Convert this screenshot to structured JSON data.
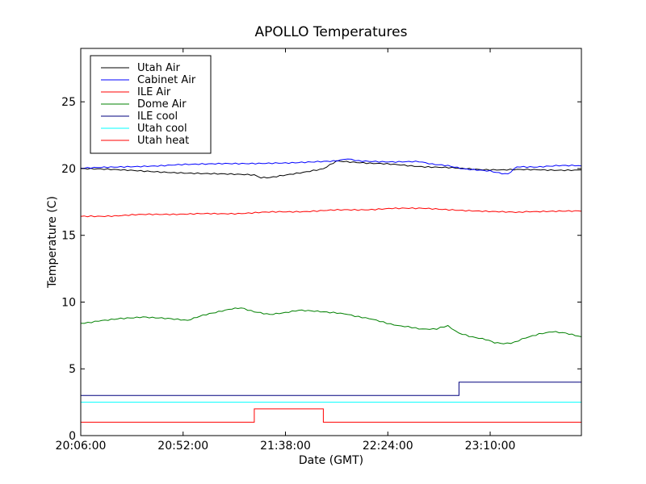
{
  "chart_data": {
    "type": "line",
    "title": "APOLLO Temperatures",
    "xlabel": "Date (GMT)",
    "ylabel": "Temperature (C)",
    "xlim_minutes": [
      0,
      225
    ],
    "ylim": [
      0,
      29
    ],
    "x_ticks": [
      {
        "value": 0,
        "label": "20:06:00"
      },
      {
        "value": 46,
        "label": "20:52:00"
      },
      {
        "value": 92,
        "label": "21:38:00"
      },
      {
        "value": 138,
        "label": "22:24:00"
      },
      {
        "value": 184,
        "label": "23:10:00"
      }
    ],
    "y_ticks": [
      {
        "value": 0,
        "label": "0"
      },
      {
        "value": 5,
        "label": "5"
      },
      {
        "value": 10,
        "label": "10"
      },
      {
        "value": 15,
        "label": "15"
      },
      {
        "value": 20,
        "label": "20"
      },
      {
        "value": 25,
        "label": "25"
      }
    ],
    "legend_position": "top-left",
    "series": [
      {
        "name": "Utah Air",
        "color": "#000000",
        "step": false,
        "points": [
          [
            0,
            20.0
          ],
          [
            30,
            19.8
          ],
          [
            60,
            19.6
          ],
          [
            78,
            19.5
          ],
          [
            81,
            19.3
          ],
          [
            85,
            19.3
          ],
          [
            100,
            19.7
          ],
          [
            109,
            20.0
          ],
          [
            115,
            20.6
          ],
          [
            130,
            20.4
          ],
          [
            150,
            20.2
          ],
          [
            170,
            20.0
          ],
          [
            190,
            19.9
          ],
          [
            225,
            19.9
          ]
        ]
      },
      {
        "name": "Cabinet Air",
        "color": "#0000ff",
        "step": false,
        "points": [
          [
            0,
            20.0
          ],
          [
            15,
            20.1
          ],
          [
            30,
            20.2
          ],
          [
            50,
            20.3
          ],
          [
            65,
            20.4
          ],
          [
            80,
            20.4
          ],
          [
            95,
            20.4
          ],
          [
            105,
            20.5
          ],
          [
            115,
            20.6
          ],
          [
            120,
            20.7
          ],
          [
            125,
            20.6
          ],
          [
            140,
            20.5
          ],
          [
            152,
            20.5
          ],
          [
            158,
            20.3
          ],
          [
            165,
            20.2
          ],
          [
            172,
            20.0
          ],
          [
            178,
            19.9
          ],
          [
            184,
            19.8
          ],
          [
            188,
            19.7
          ],
          [
            192,
            19.6
          ],
          [
            196,
            20.1
          ],
          [
            205,
            20.1
          ],
          [
            215,
            20.2
          ],
          [
            225,
            20.2
          ]
        ]
      },
      {
        "name": "ILE Air",
        "color": "#ff0000",
        "step": false,
        "points": [
          [
            0,
            16.4
          ],
          [
            20,
            16.5
          ],
          [
            40,
            16.6
          ],
          [
            60,
            16.6
          ],
          [
            80,
            16.7
          ],
          [
            100,
            16.8
          ],
          [
            120,
            16.9
          ],
          [
            140,
            17.0
          ],
          [
            155,
            17.0
          ],
          [
            170,
            16.9
          ],
          [
            185,
            16.8
          ],
          [
            197,
            16.7
          ],
          [
            205,
            16.8
          ],
          [
            215,
            16.8
          ],
          [
            225,
            16.8
          ]
        ]
      },
      {
        "name": "Dome Air",
        "color": "#008000",
        "step": false,
        "points": [
          [
            0,
            8.4
          ],
          [
            8,
            8.6
          ],
          [
            18,
            8.8
          ],
          [
            28,
            8.9
          ],
          [
            35,
            8.8
          ],
          [
            42,
            8.7
          ],
          [
            48,
            8.6
          ],
          [
            55,
            9.0
          ],
          [
            62,
            9.3
          ],
          [
            68,
            9.5
          ],
          [
            72,
            9.6
          ],
          [
            78,
            9.3
          ],
          [
            85,
            9.1
          ],
          [
            92,
            9.2
          ],
          [
            98,
            9.4
          ],
          [
            105,
            9.3
          ],
          [
            112,
            9.2
          ],
          [
            120,
            9.1
          ],
          [
            128,
            8.8
          ],
          [
            136,
            8.5
          ],
          [
            144,
            8.2
          ],
          [
            152,
            8.0
          ],
          [
            160,
            8.0
          ],
          [
            165,
            8.2
          ],
          [
            170,
            7.7
          ],
          [
            176,
            7.4
          ],
          [
            182,
            7.2
          ],
          [
            186,
            7.0
          ],
          [
            190,
            6.9
          ],
          [
            195,
            7.0
          ],
          [
            200,
            7.3
          ],
          [
            206,
            7.6
          ],
          [
            212,
            7.8
          ],
          [
            218,
            7.7
          ],
          [
            225,
            7.4
          ]
        ]
      },
      {
        "name": "ILE cool",
        "color": "#00007f",
        "step": true,
        "points": [
          [
            0,
            3
          ],
          [
            170,
            3
          ],
          [
            170,
            4
          ],
          [
            225,
            4
          ]
        ]
      },
      {
        "name": "Utah cool",
        "color": "#00ffff",
        "step": true,
        "points": [
          [
            0,
            2.5
          ],
          [
            225,
            2.5
          ]
        ]
      },
      {
        "name": "Utah heat",
        "color": "#ff0000",
        "step": true,
        "points": [
          [
            0,
            1
          ],
          [
            78,
            1
          ],
          [
            78,
            2
          ],
          [
            109,
            2
          ],
          [
            109,
            1
          ],
          [
            225,
            1
          ]
        ]
      }
    ]
  }
}
